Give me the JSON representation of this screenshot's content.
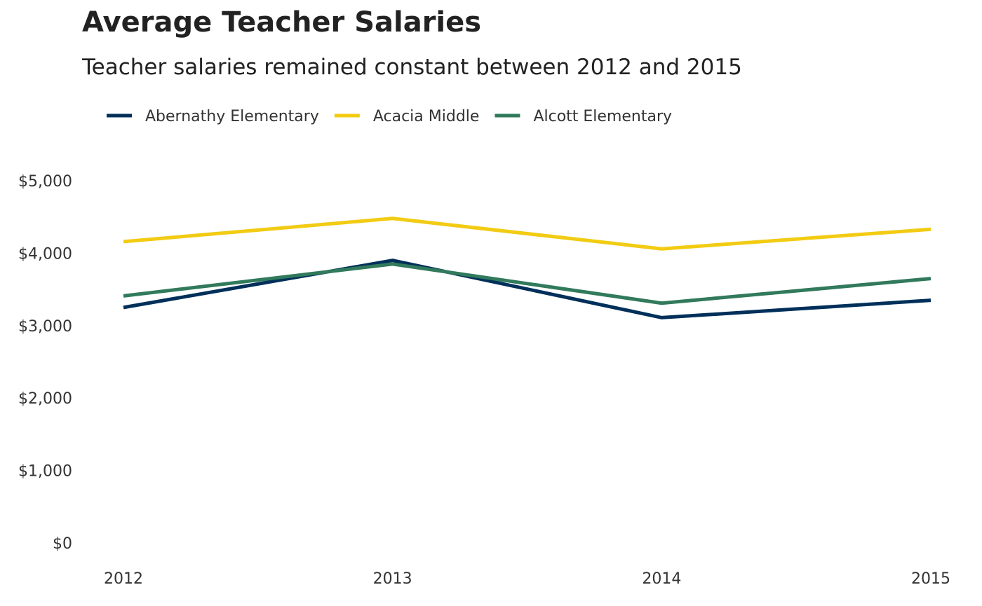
{
  "chart_data": {
    "type": "line",
    "title": "Average Teacher Salaries",
    "subtitle": "Teacher salaries remained constant between 2012 and 2015",
    "xlabel": "",
    "ylabel": "",
    "x": [
      "2012",
      "2013",
      "2014",
      "2015"
    ],
    "ylim": [
      0,
      5000
    ],
    "yticks": [
      0,
      1000,
      2000,
      3000,
      4000,
      5000
    ],
    "ytick_labels": [
      "$0",
      "$1,000",
      "$2,000",
      "$3,000",
      "$4,000",
      "$5,000"
    ],
    "grid": false,
    "legend_position": "top-left",
    "series": [
      {
        "name": "Abernathy Elementary",
        "color": "#00305A",
        "values": [
          3250,
          3900,
          3110,
          3350
        ]
      },
      {
        "name": "Acacia Middle",
        "color": "#F2CB13",
        "values": [
          4160,
          4480,
          4060,
          4330
        ]
      },
      {
        "name": "Alcott Elementary",
        "color": "#317A5C",
        "values": [
          3410,
          3850,
          3310,
          3650
        ]
      }
    ]
  }
}
